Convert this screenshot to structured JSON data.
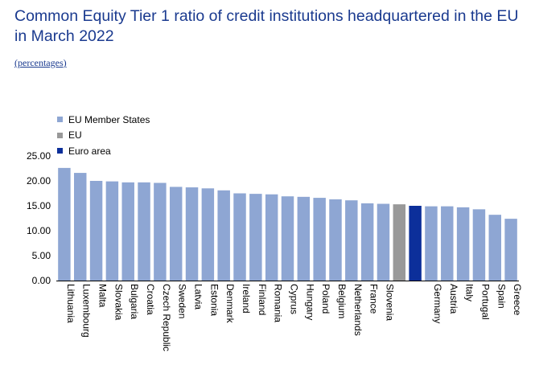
{
  "title": "Common Equity Tier 1 ratio of credit institutions headquartered in the EU in March 2022",
  "subtitle": "(percentages)",
  "colors": {
    "member": "#8ea6d3",
    "eu": "#999999",
    "euro_area": "#0c2f9a",
    "axis": "#000000"
  },
  "legend": [
    {
      "label": "EU Member States",
      "color": "#8ea6d3"
    },
    {
      "label": "EU",
      "color": "#999999"
    },
    {
      "label": "Euro area",
      "color": "#0c2f9a"
    }
  ],
  "chart_data": {
    "type": "bar",
    "title": "Common Equity Tier 1 ratio of credit institutions headquartered in the EU in March 2022",
    "subtitle": "(percentages)",
    "grid": false,
    "legend_position": "top-left",
    "ylim": [
      0,
      25
    ],
    "yticks": [
      "25.00",
      "20.00",
      "15.00",
      "10.00",
      "5.00",
      "0.00"
    ],
    "categories": [
      "Lithuania",
      "Luxembourg",
      "Malta",
      "Slovakia",
      "Bulgaria",
      "Croatia",
      "Czech Republic",
      "Sweden",
      "Latvia",
      "Estonia",
      "Denmark",
      "Ireland",
      "Finland",
      "Romania",
      "Cyprus",
      "Hungary",
      "Poland",
      "Belgium",
      "Netherlands",
      "France",
      "Slovenia",
      "",
      "",
      "Germany",
      "Austria",
      "Italy",
      "Portugal",
      "Spain",
      "Greece"
    ],
    "values": [
      22.6,
      21.6,
      20.0,
      19.9,
      19.7,
      19.7,
      19.6,
      18.8,
      18.7,
      18.5,
      18.1,
      17.5,
      17.4,
      17.3,
      16.9,
      16.8,
      16.6,
      16.3,
      16.1,
      15.5,
      15.4,
      15.3,
      15.0,
      14.9,
      14.9,
      14.7,
      14.3,
      13.2,
      12.4
    ],
    "groups": [
      "member",
      "member",
      "member",
      "member",
      "member",
      "member",
      "member",
      "member",
      "member",
      "member",
      "member",
      "member",
      "member",
      "member",
      "member",
      "member",
      "member",
      "member",
      "member",
      "member",
      "member",
      "eu",
      "euro_area",
      "member",
      "member",
      "member",
      "member",
      "member",
      "member"
    ]
  }
}
